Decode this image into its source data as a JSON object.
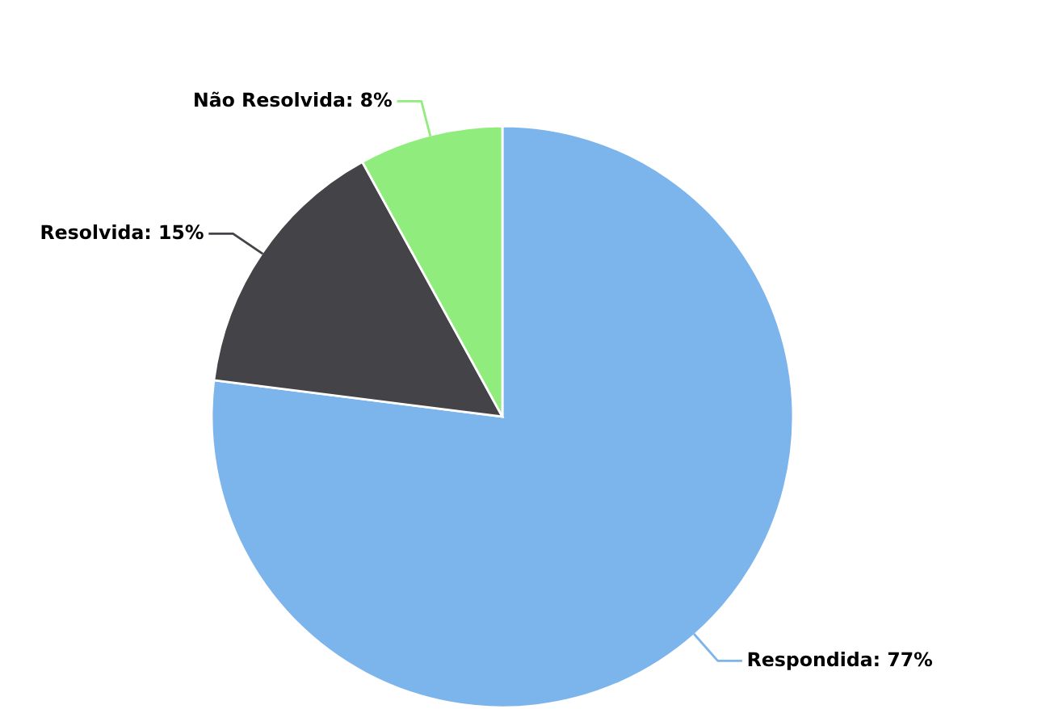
{
  "chart_data": {
    "type": "pie",
    "categories": [
      "Respondida",
      "Resolvida",
      "Não Resolvida"
    ],
    "values": [
      77,
      15,
      8
    ],
    "value_labels": [
      "77%",
      "15%",
      "8%"
    ],
    "colors": [
      "#7cb5ec",
      "#434348",
      "#90ed7d"
    ],
    "legend": false
  }
}
